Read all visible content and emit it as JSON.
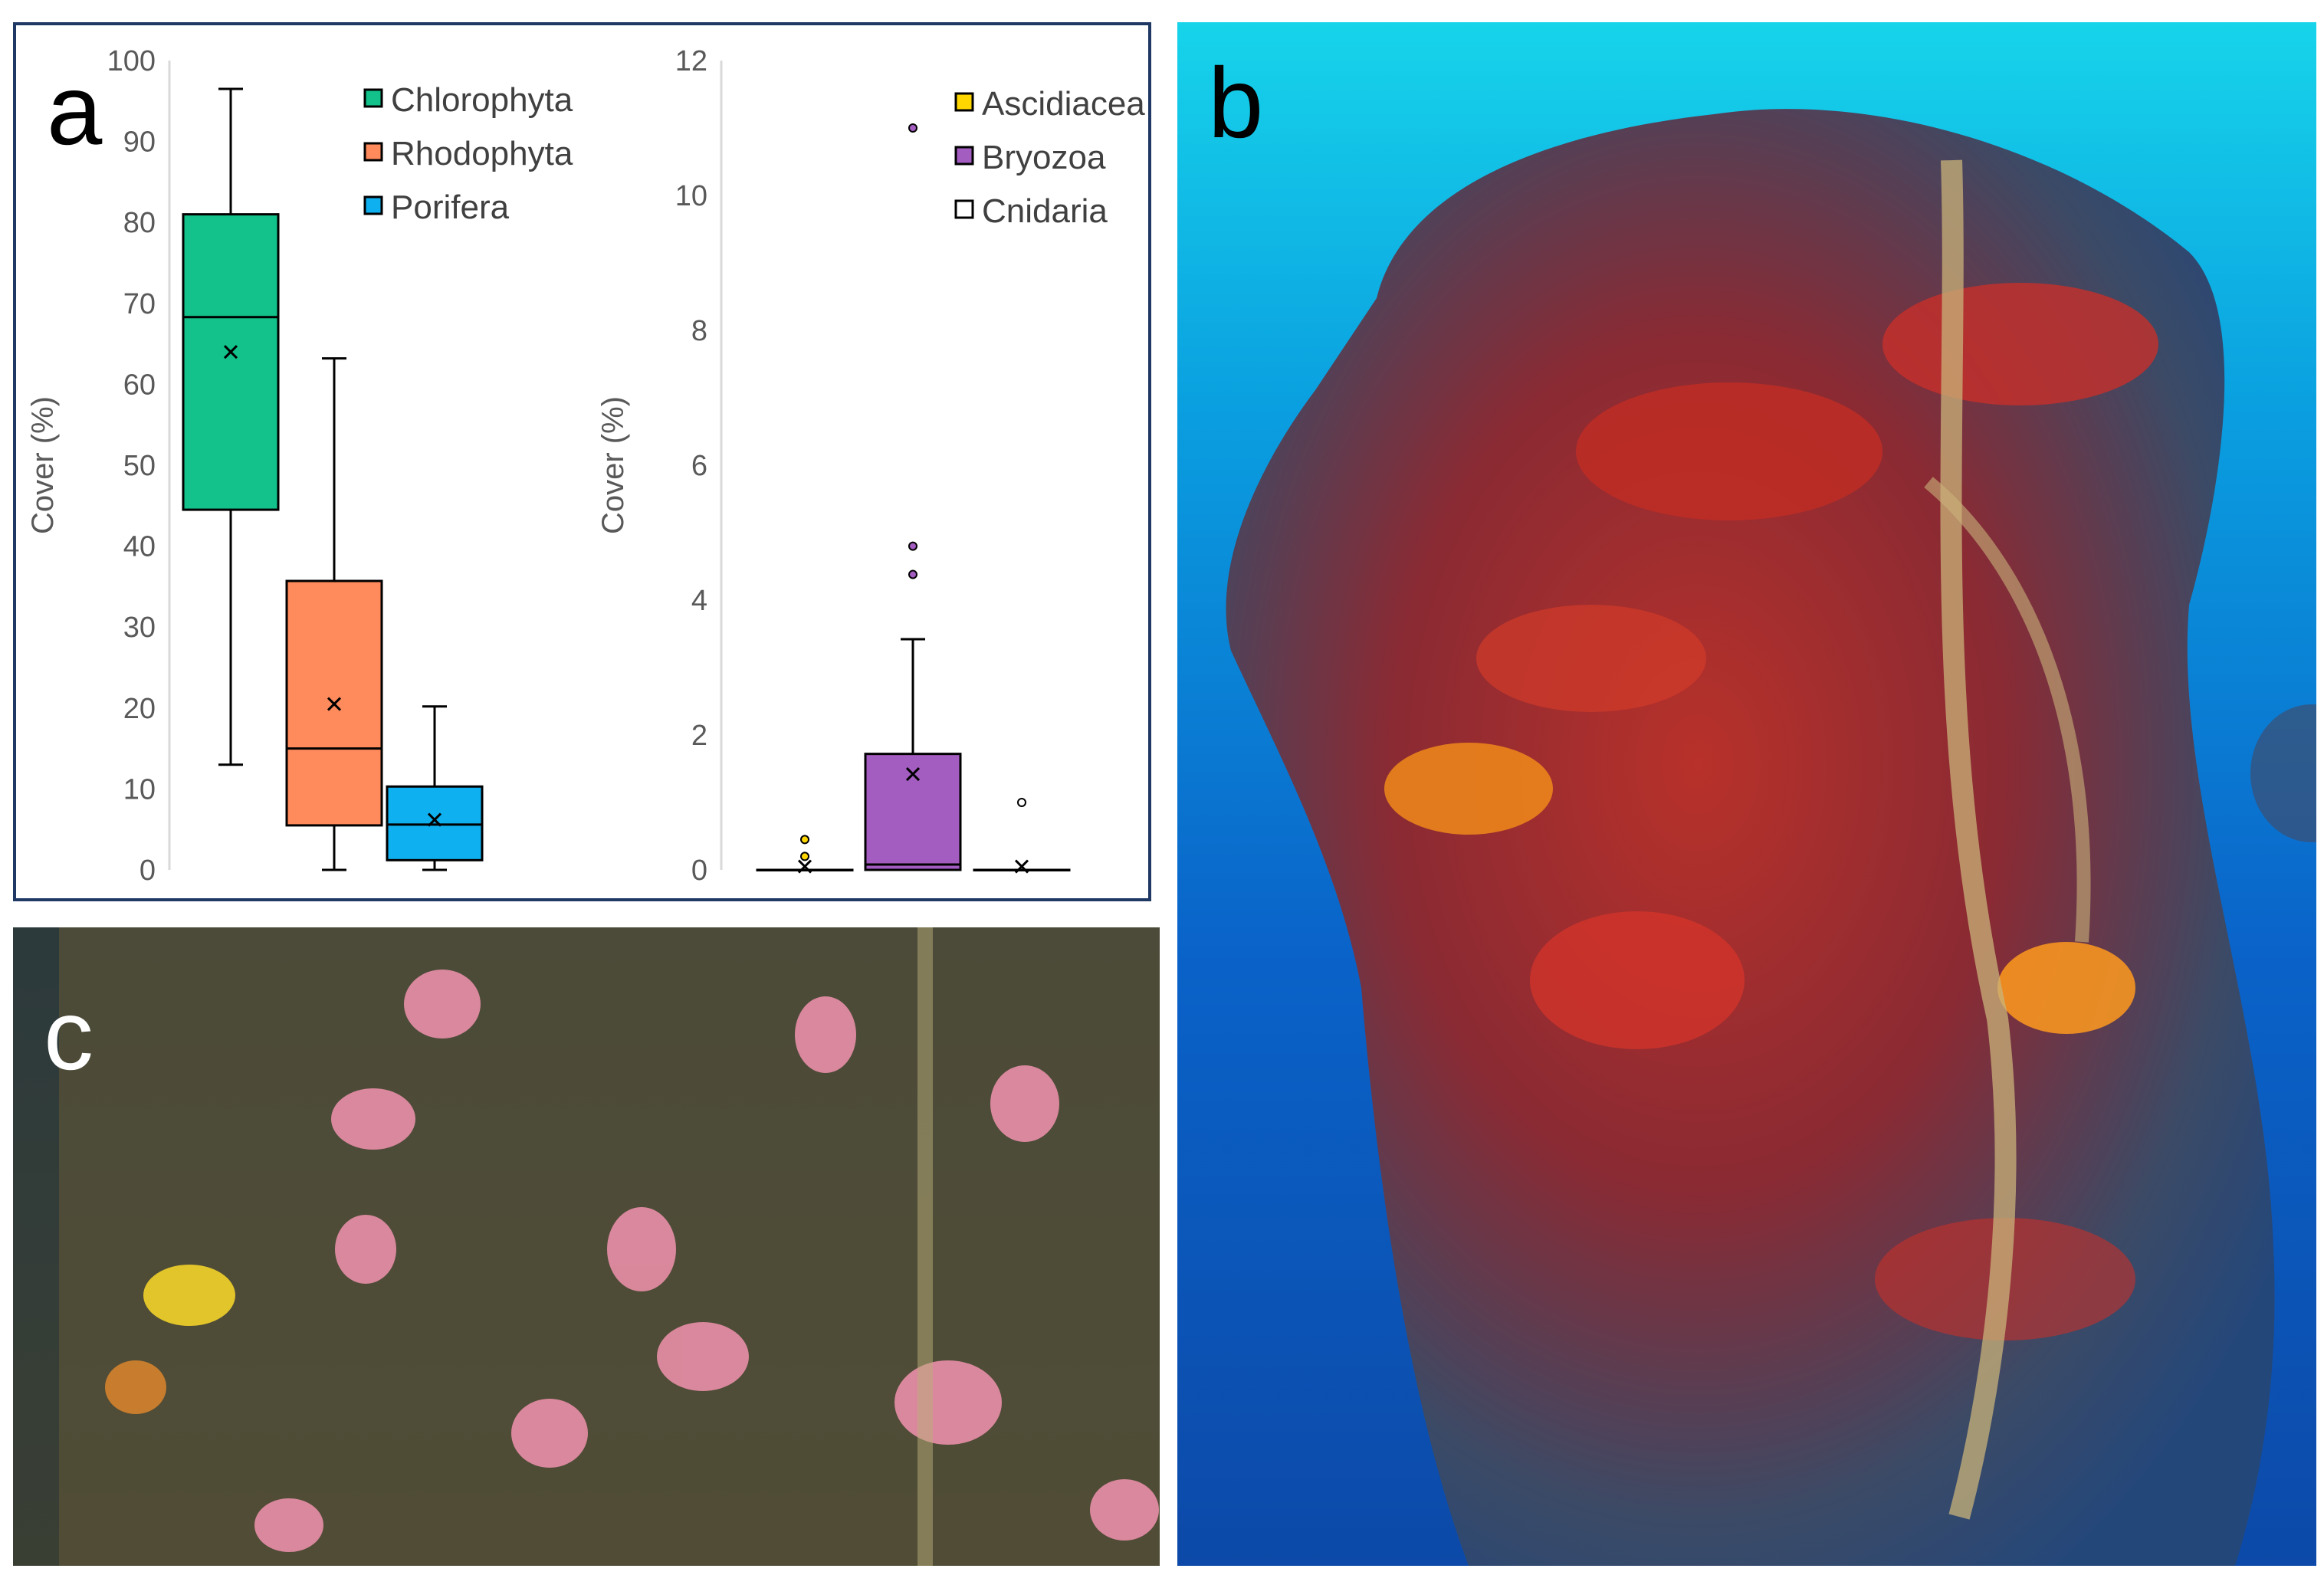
{
  "panels": {
    "a_label": "a",
    "b_label": "b",
    "c_label": "c"
  },
  "colors": {
    "Chlorophyta": "#12c28a",
    "Rhodophyta": "#ff8a5c",
    "Porifera": "#0fb0ef",
    "Ascidiacea": "#ffd700",
    "Bryozoa": "#a35cc0",
    "Cnidaria": "#ffffff",
    "frame": "#1f3864"
  },
  "chart_data": [
    {
      "type": "box",
      "ylabel": "Cover (%)",
      "ylim": [
        0,
        100
      ],
      "yticks": [
        "0",
        "10",
        "20",
        "30",
        "40",
        "50",
        "60",
        "70",
        "80",
        "90",
        "100"
      ],
      "legend": "top-right",
      "series": [
        {
          "name": "Chlorophyta",
          "min": 13,
          "q1": 44.5,
          "median": 68.3,
          "q3": 81,
          "max": 96.5,
          "mean": 64,
          "outliers": []
        },
        {
          "name": "Rhodophyta",
          "min": 0,
          "q1": 5.5,
          "median": 15,
          "q3": 35.7,
          "max": 63.2,
          "mean": 20.5,
          "outliers": []
        },
        {
          "name": "Porifera",
          "min": 0,
          "q1": 1.2,
          "median": 5.6,
          "q3": 10.3,
          "max": 20.2,
          "mean": 6.2,
          "outliers": []
        }
      ]
    },
    {
      "type": "box",
      "ylabel": "Cover (%)",
      "ylim": [
        0,
        12
      ],
      "yticks": [
        "0",
        "2",
        "4",
        "6",
        "8",
        "10",
        "12"
      ],
      "legend": "top-right",
      "series": [
        {
          "name": "Ascidiacea",
          "min": 0,
          "q1": 0,
          "median": 0,
          "q3": 0,
          "max": 0,
          "mean": 0.05,
          "outliers": [
            0.2,
            0.45
          ]
        },
        {
          "name": "Bryozoa",
          "min": 0,
          "q1": 0,
          "median": 0.08,
          "q3": 1.72,
          "max": 3.42,
          "mean": 1.42,
          "outliers": [
            4.38,
            4.8,
            11
          ]
        },
        {
          "name": "Cnidaria",
          "min": 0,
          "q1": 0,
          "median": 0,
          "q3": 0,
          "max": 0,
          "mean": 0.05,
          "outliers": [
            1.0
          ]
        }
      ]
    }
  ]
}
